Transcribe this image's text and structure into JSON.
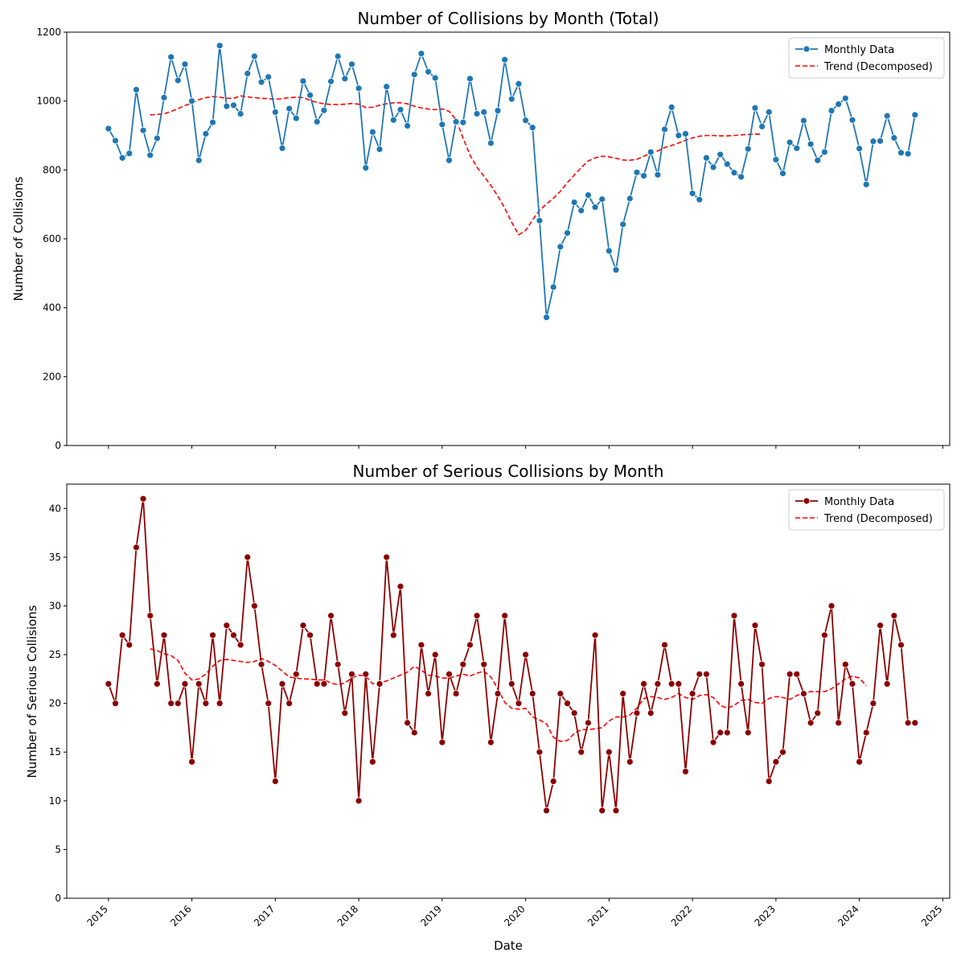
{
  "x_axis": {
    "label": "Date",
    "ticks": [
      "2015",
      "2016",
      "2017",
      "2018",
      "2019",
      "2020",
      "2021",
      "2022",
      "2023",
      "2024",
      "2025"
    ]
  },
  "legend": {
    "monthly": "Monthly Data",
    "trend": "Trend (Decomposed)"
  },
  "chart_data": [
    {
      "type": "line",
      "title": "Number of Collisions by Month (Total)",
      "xlabel": "",
      "ylabel": "Number of Collisions",
      "ylim": [
        0,
        1200
      ],
      "yticks": [
        0,
        200,
        400,
        600,
        800,
        1000,
        1200
      ],
      "xlim": [
        "2014-07",
        "2025-02"
      ],
      "legend_position": "top-right",
      "line_color": "#1f77b4",
      "trend_color": "#ff0000",
      "x_start": "2015-01",
      "series": [
        {
          "name": "Monthly Data",
          "values": [
            920,
            885,
            835,
            848,
            1033,
            915,
            843,
            892,
            1010,
            1128,
            1060,
            1107,
            1000,
            828,
            905,
            938,
            1161,
            985,
            988,
            963,
            1080,
            1130,
            1055,
            1070,
            968,
            863,
            978,
            950,
            1058,
            1017,
            940,
            973,
            1057,
            1130,
            1065,
            1107,
            1037,
            806,
            910,
            860,
            1042,
            945,
            975,
            928,
            1077,
            1138,
            1085,
            1067,
            932,
            828,
            940,
            938,
            1065,
            963,
            968,
            878,
            972,
            1120,
            1006,
            1050,
            944,
            923,
            653,
            372,
            460,
            577,
            617,
            706,
            682,
            727,
            692,
            715,
            565,
            510,
            642,
            717,
            793,
            783,
            852,
            786,
            918,
            982,
            900,
            905,
            732,
            714,
            835,
            808,
            845,
            817,
            792,
            780,
            861,
            980,
            926,
            968,
            830,
            790,
            880,
            863,
            943,
            875,
            828,
            852,
            972,
            991,
            1008,
            945,
            862,
            758,
            883,
            884,
            957,
            893,
            850,
            847,
            960
          ]
        },
        {
          "name": "Trend (Decomposed)",
          "start_index": 6,
          "values": [
            960,
            961,
            963,
            970,
            978,
            987,
            994,
            1004,
            1010,
            1013,
            1011,
            1008,
            1008,
            1015,
            1012,
            1010,
            1008,
            1007,
            1005,
            1007,
            1010,
            1011,
            1010,
            1002,
            996,
            992,
            990,
            990,
            991,
            993,
            991,
            981,
            982,
            988,
            992,
            995,
            995,
            992,
            985,
            980,
            977,
            975,
            977,
            970,
            946,
            893,
            843,
            808,
            782,
            755,
            724,
            689,
            648,
            612,
            624,
            655,
            683,
            701,
            718,
            738,
            763,
            785,
            807,
            826,
            835,
            840,
            838,
            834,
            829,
            828,
            831,
            840,
            848,
            855,
            865,
            871,
            878,
            886,
            893,
            898,
            900,
            900,
            899,
            899,
            900,
            902,
            903,
            904,
            904
          ]
        }
      ]
    },
    {
      "type": "line",
      "title": "Number of Serious Collisions by Month",
      "xlabel": "Date",
      "ylabel": "Number of Serious Collisions",
      "ylim": [
        0,
        42.5
      ],
      "yticks": [
        0,
        5,
        10,
        15,
        20,
        25,
        30,
        35,
        40
      ],
      "xlim": [
        "2014-07",
        "2025-02"
      ],
      "legend_position": "top-right",
      "line_color": "#8b0000",
      "trend_color": "#ff0000",
      "x_start": "2015-01",
      "series": [
        {
          "name": "Monthly Data",
          "values": [
            22,
            20,
            27,
            26,
            36,
            41,
            29,
            22,
            27,
            20,
            20,
            22,
            14,
            22,
            20,
            27,
            20,
            28,
            27,
            26,
            35,
            30,
            24,
            20,
            12,
            22,
            20,
            23,
            28,
            27,
            22,
            22,
            29,
            24,
            19,
            23,
            10,
            23,
            14,
            22,
            35,
            27,
            32,
            18,
            17,
            26,
            21,
            25,
            16,
            23,
            21,
            24,
            26,
            29,
            24,
            16,
            21,
            29,
            22,
            20,
            25,
            21,
            15,
            9,
            12,
            21,
            20,
            19,
            15,
            18,
            27,
            9,
            15,
            9,
            21,
            14,
            19,
            22,
            19,
            22,
            26,
            22,
            22,
            13,
            21,
            23,
            23,
            16,
            17,
            17,
            29,
            22,
            17,
            28,
            24,
            12,
            14,
            15,
            23,
            23,
            21,
            18,
            19,
            27,
            30,
            18,
            24,
            22,
            14,
            17,
            20,
            28,
            22,
            29,
            26,
            18,
            18
          ]
        },
        {
          "name": "Trend (Decomposed)",
          "start_index": 6,
          "values": [
            25.6,
            25.4,
            25.1,
            24.9,
            24.4,
            23.1,
            22.4,
            22.5,
            23.0,
            23.8,
            24.4,
            24.5,
            24.4,
            24.3,
            24.2,
            24.3,
            24.6,
            24.3,
            23.9,
            23.3,
            22.7,
            22.6,
            22.5,
            22.5,
            22.4,
            22.4,
            22.1,
            21.9,
            22.1,
            22.6,
            22.9,
            22.8,
            22.0,
            22.1,
            22.3,
            22.6,
            22.9,
            23.2,
            23.8,
            23.4,
            22.9,
            22.8,
            22.6,
            22.6,
            22.8,
            23.0,
            22.8,
            23.1,
            23.3,
            22.7,
            21.5,
            20.1,
            19.5,
            19.4,
            19.5,
            18.6,
            18.3,
            17.9,
            16.5,
            16.1,
            16.2,
            16.9,
            17.3,
            17.3,
            17.4,
            17.5,
            18.2,
            18.6,
            18.6,
            18.8,
            19.5,
            20.5,
            20.7,
            20.6,
            20.4,
            20.6,
            21.0,
            20.6,
            20.4,
            20.8,
            20.9,
            20.6,
            19.8,
            19.5,
            19.8,
            20.3,
            20.4,
            20.1,
            20.0,
            20.5,
            20.7,
            20.6,
            20.4,
            20.8,
            21.1,
            21.2,
            21.2,
            21.2,
            21.5,
            22.0,
            22.5,
            22.8,
            22.6,
            21.8
          ]
        }
      ]
    }
  ]
}
